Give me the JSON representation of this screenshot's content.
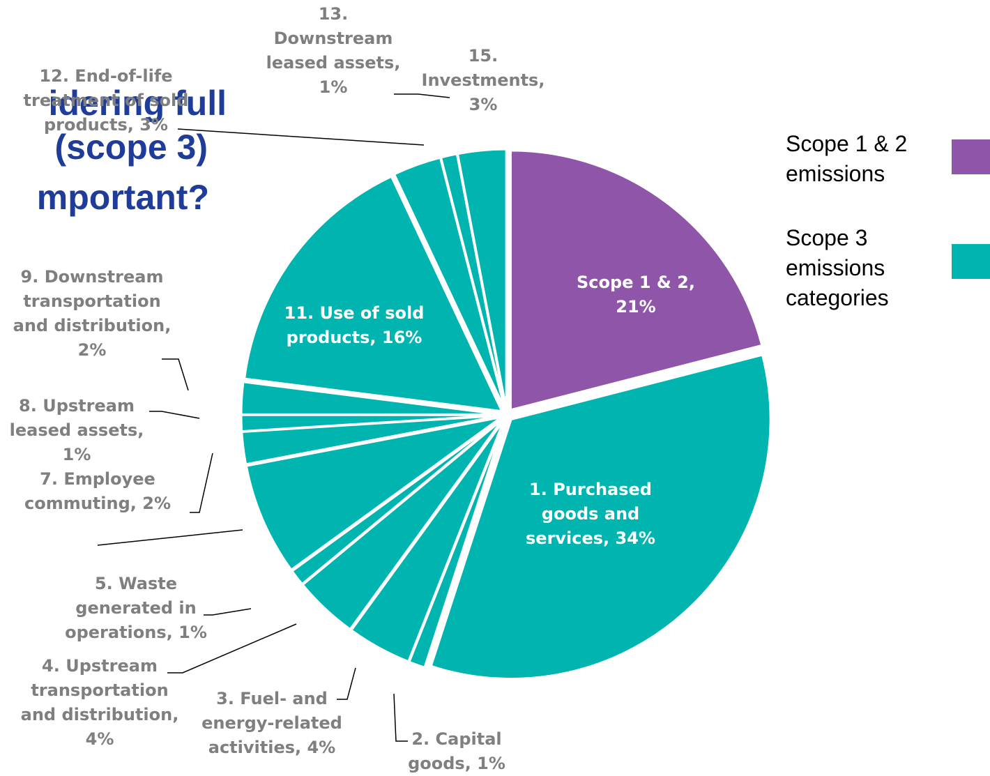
{
  "chart_data": {
    "type": "pie",
    "title_lines": [
      "idering full",
      "(scope 3)",
      "mportant?"
    ],
    "categories": [
      "Scope 1 & 2",
      "1. Purchased goods and services",
      "2. Capital goods",
      "3. Fuel- and energy-related activities",
      "4. Upstream transportation and distribution",
      "5. Waste generated in operations",
      null,
      "7. Employee commuting",
      "8. Upstream leased assets",
      "9. Downstream transportation and distribution",
      "11. Use of sold products",
      "12. End-of-life treatment of sold products",
      "13. Downstream leased assets",
      "15. Investments"
    ],
    "values": [
      21,
      34,
      1,
      4,
      4,
      1,
      7,
      2,
      1,
      2,
      16,
      3,
      1,
      3
    ],
    "value_labels": [
      "Scope 1 & 2, 21%",
      "1. Purchased goods and services, 34%",
      "2. Capital goods, 1%",
      "3. Fuel- and energy-related activities, 4%",
      "4. Upstream transportation and distribution, 4%",
      "5. Waste generated in operations, 1%",
      null,
      "7. Employee commuting, 2%",
      "8. Upstream leased assets, 1%",
      "9. Downstream transportation and distribution, 2%",
      "11. Use of sold products, 16%",
      "12. End-of-life treatment of sold products, 3%",
      "13. Downstream leased assets, 1%",
      "15. Investments, 3%"
    ],
    "colors": [
      "#8e55a8",
      "#00b5b0",
      "#00b5b0",
      "#00b5b0",
      "#00b5b0",
      "#00b5b0",
      "#00b5b0",
      "#00b5b0",
      "#00b5b0",
      "#00b5b0",
      "#00b5b0",
      "#00b5b0",
      "#00b5b0",
      "#00b5b0"
    ],
    "legend": [
      {
        "name": "Scope 1 & 2 emissions",
        "color": "#8e55a8"
      },
      {
        "name": "Scope 3 emissions categories",
        "color": "#00b5b0"
      }
    ]
  }
}
